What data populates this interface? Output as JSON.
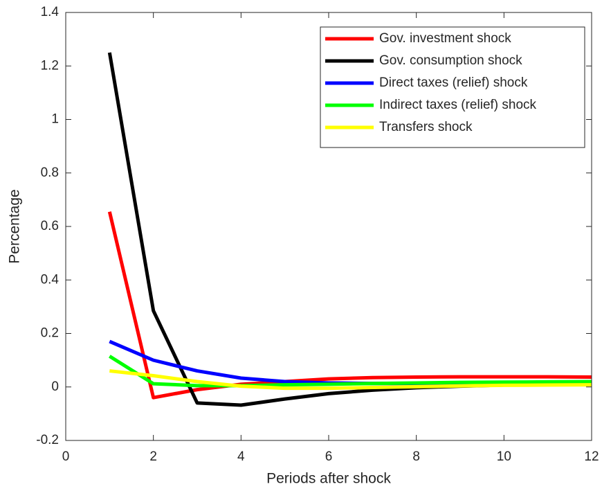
{
  "chart_data": {
    "type": "line",
    "xlabel": "Periods after shock",
    "ylabel": "Percentage",
    "x": [
      1,
      2,
      3,
      4,
      5,
      6,
      7,
      8,
      9,
      10,
      11,
      12
    ],
    "series": [
      {
        "name": "Gov. investment shock",
        "color": "#ff0000",
        "values": [
          0.655,
          -0.04,
          -0.01,
          0.01,
          0.02,
          0.03,
          0.035,
          0.037,
          0.038,
          0.038,
          0.038,
          0.037
        ]
      },
      {
        "name": "Gov. consumption shock",
        "color": "#000000",
        "values": [
          1.25,
          0.285,
          -0.06,
          -0.068,
          -0.045,
          -0.025,
          -0.012,
          -0.003,
          0.003,
          0.007,
          0.01,
          0.012
        ]
      },
      {
        "name": "Direct taxes (relief) shock",
        "color": "#0000ff",
        "values": [
          0.17,
          0.1,
          0.06,
          0.033,
          0.02,
          0.015,
          0.013,
          0.013,
          0.013,
          0.014,
          0.015,
          0.016
        ]
      },
      {
        "name": "Indirect taxes (relief) shock",
        "color": "#00ff00",
        "values": [
          0.115,
          0.012,
          0.005,
          0.005,
          0.008,
          0.01,
          0.013,
          0.015,
          0.017,
          0.018,
          0.019,
          0.02
        ]
      },
      {
        "name": "Transfers shock",
        "color": "#ffff00",
        "values": [
          0.06,
          0.042,
          0.02,
          0.003,
          -0.005,
          -0.005,
          -0.002,
          0.001,
          0.004,
          0.006,
          0.007,
          0.008
        ]
      }
    ],
    "xlim": [
      0,
      12
    ],
    "xticks": [
      0,
      2,
      4,
      6,
      8,
      10,
      12
    ],
    "ylim": [
      -0.2,
      1.4
    ],
    "yticks": [
      -0.2,
      0,
      0.2,
      0.4,
      0.6,
      0.8,
      1,
      1.2,
      1.4
    ],
    "legend": "northeast"
  }
}
